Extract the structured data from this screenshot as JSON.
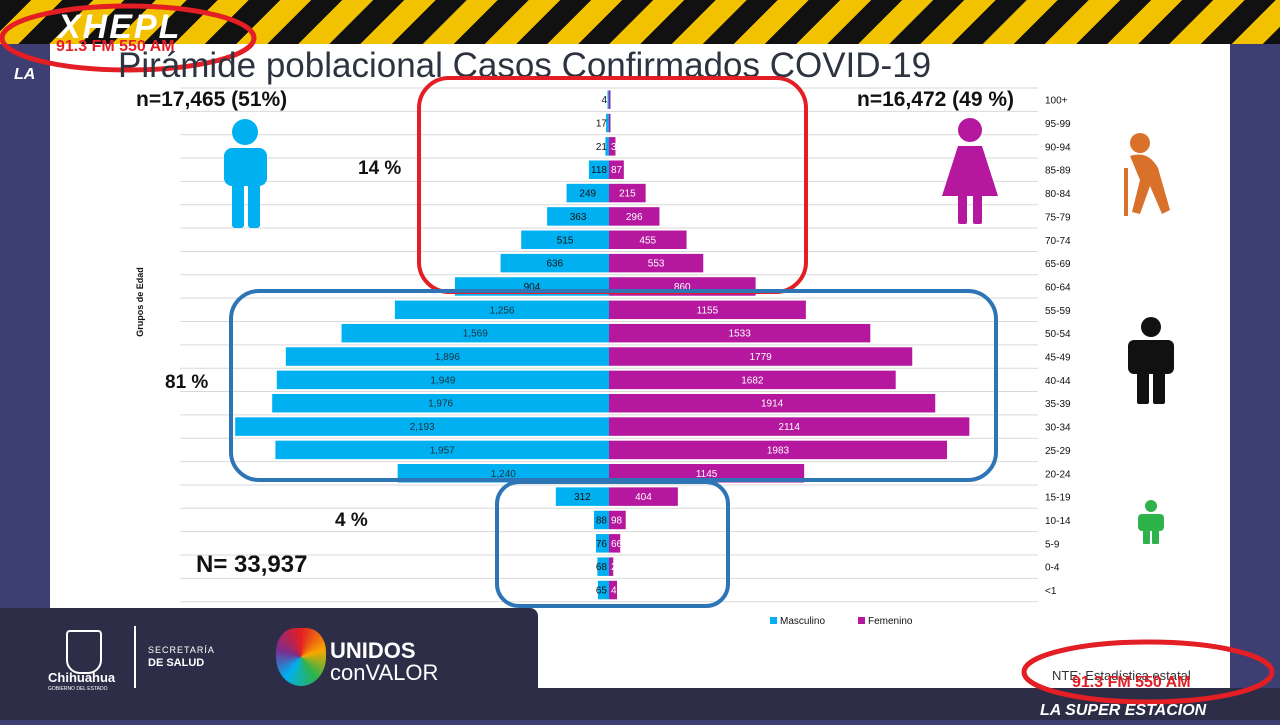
{
  "title": "Pirámide poblacional Casos Confirmados COVID-19",
  "male_total": "n=17,465 (51%)",
  "female_total": "n=16,472 (49 %)",
  "grand_total": "N= 33,937",
  "pct_elderly": "14 %",
  "pct_adult": "81 %",
  "pct_young": "4 %",
  "source_text": "NTE: Estadística estatal",
  "station": {
    "logo": "XHEPL",
    "freq": "91.3 FM  550 AM",
    "slogan_top": "LA",
    "slogan": "LA SUPER ESTACION"
  },
  "footer": {
    "state": "Chihuahua",
    "state_sub": "GOBIERNO DEL ESTADO",
    "dept_line1": "SECRETARÍA",
    "dept_line2": "DE SALUD",
    "campaign_line1": "UNIDOS",
    "campaign_line2": "conVALOR"
  },
  "chart_data": {
    "type": "bar",
    "orientation": "horizontal-pyramid",
    "ylabel": "Grupos de Edad",
    "categories": [
      "100+",
      "95-99",
      "90-94",
      "85-89",
      "80-84",
      "75-79",
      "70-74",
      "65-69",
      "60-64",
      "55-59",
      "50-54",
      "45-49",
      "40-44",
      "35-39",
      "30-34",
      "25-29",
      "20-24",
      "15-19",
      "10-14",
      "5-9",
      "0-4",
      "<1"
    ],
    "series": [
      {
        "name": "Masculino",
        "color": "#00b0f0",
        "values": [
          4,
          17,
          21,
          118,
          249,
          363,
          515,
          636,
          904,
          1256,
          1569,
          1896,
          1949,
          1976,
          2193,
          1957,
          1240,
          312,
          88,
          76,
          68,
          65
        ],
        "labels": [
          "4",
          "17",
          "21",
          "118",
          "249",
          "363",
          "515",
          "636",
          "904",
          "1,256",
          "1,569",
          "1,896",
          "1,949",
          "1,976",
          "2,193",
          "1,957",
          "1,240",
          "312",
          "88",
          "76",
          "68",
          "65"
        ]
      },
      {
        "name": "Femenino",
        "color": "#b5179e",
        "values": [
          2,
          7,
          38,
          87,
          215,
          296,
          455,
          553,
          860,
          1155,
          1533,
          1779,
          1682,
          1914,
          2114,
          1983,
          1145,
          404,
          98,
          66,
          25,
          47
        ],
        "labels": [
          "2",
          "7",
          "38",
          "87",
          "215",
          "296",
          "455",
          "553",
          "860",
          "1155",
          "1533",
          "1779",
          "1682",
          "1914",
          "2114",
          "1983",
          "1145",
          "404",
          "98",
          "66",
          "25",
          "47"
        ]
      }
    ],
    "xlim": [
      -2200,
      2200
    ],
    "grid": true,
    "legend": "bottom-right",
    "colors": {
      "highlight_red": "#e31e24",
      "highlight_blue": "#2e75b6"
    }
  }
}
